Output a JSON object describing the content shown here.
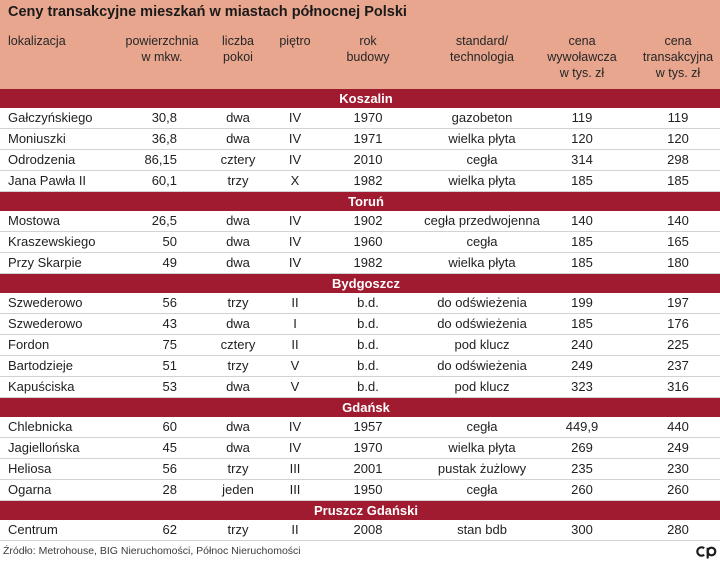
{
  "colors": {
    "header_background": "#e9a68e",
    "band_background": "#a01a30",
    "band_text": "#ffffff",
    "row_separator": "#d2d2d2"
  },
  "chart_data": {
    "type": "table",
    "title": "Ceny transakcyjne mieszkań w miastach północnej Polski",
    "columns": [
      "lokalizacja",
      "powierzchnia\nw mkw.",
      "liczba\npokoi",
      "piętro",
      "rok\nbudowy",
      "standard/\ntechnologia",
      "cena\nwywoławcza\nw tys. zł",
      "cena\ntransakcyjna\nw tys. zł"
    ],
    "groups": [
      {
        "name": "Koszalin",
        "rows": [
          [
            "Gałczyńskiego",
            "30,8",
            "dwa",
            "IV",
            "1970",
            "gazobeton",
            "119",
            "119"
          ],
          [
            "Moniuszki",
            "36,8",
            "dwa",
            "IV",
            "1971",
            "wielka płyta",
            "120",
            "120"
          ],
          [
            "Odrodzenia",
            "86,15",
            "cztery",
            "IV",
            "2010",
            "cegła",
            "314",
            "298"
          ],
          [
            "Jana Pawła II",
            "60,1",
            "trzy",
            "X",
            "1982",
            "wielka płyta",
            "185",
            "185"
          ]
        ]
      },
      {
        "name": "Toruń",
        "rows": [
          [
            "Mostowa",
            "26,5",
            "dwa",
            "IV",
            "1902",
            "cegła przedwojenna",
            "140",
            "140"
          ],
          [
            "Kraszewskiego",
            "50",
            "dwa",
            "IV",
            "1960",
            "cegła",
            "185",
            "165"
          ],
          [
            "Przy Skarpie",
            "49",
            "dwa",
            "IV",
            "1982",
            "wielka płyta",
            "185",
            "180"
          ]
        ]
      },
      {
        "name": "Bydgoszcz",
        "rows": [
          [
            "Szwederowo",
            "56",
            "trzy",
            "II",
            "b.d.",
            "do odświeżenia",
            "199",
            "197"
          ],
          [
            "Szwederowo",
            "43",
            "dwa",
            "I",
            "b.d.",
            "do odświeżenia",
            "185",
            "176"
          ],
          [
            "Fordon",
            "75",
            "cztery",
            "II",
            "b.d.",
            "pod klucz",
            "240",
            "225"
          ],
          [
            "Bartodzieje",
            "51",
            "trzy",
            "V",
            "b.d.",
            "do odświeżenia",
            "249",
            "237"
          ],
          [
            "Kapuściska",
            "53",
            "dwa",
            "V",
            "b.d.",
            "pod klucz",
            "323",
            "316"
          ]
        ]
      },
      {
        "name": "Gdańsk",
        "rows": [
          [
            "Chlebnicka",
            "60",
            "dwa",
            "IV",
            "1957",
            "cegła",
            "449,9",
            "440"
          ],
          [
            "Jagiellońska",
            "45",
            "dwa",
            "IV",
            "1970",
            "wielka płyta",
            "269",
            "249"
          ],
          [
            "Heliosa",
            "56",
            "trzy",
            "III",
            "2001",
            "pustak żużlowy",
            "235",
            "230"
          ],
          [
            "Ogarna",
            "28",
            "jeden",
            "III",
            "1950",
            "cegła",
            "260",
            "260"
          ]
        ]
      },
      {
        "name": "Pruszcz Gdański",
        "rows": [
          [
            "Centrum",
            "62",
            "trzy",
            "II",
            "2008",
            "stan bdb",
            "300",
            "280"
          ]
        ]
      }
    ]
  },
  "footer": {
    "source": "Źródło: Metrohouse, BIG Nieruchomości, Północ Nieruchomości",
    "logo_icon": "publisher-logo-icon"
  }
}
